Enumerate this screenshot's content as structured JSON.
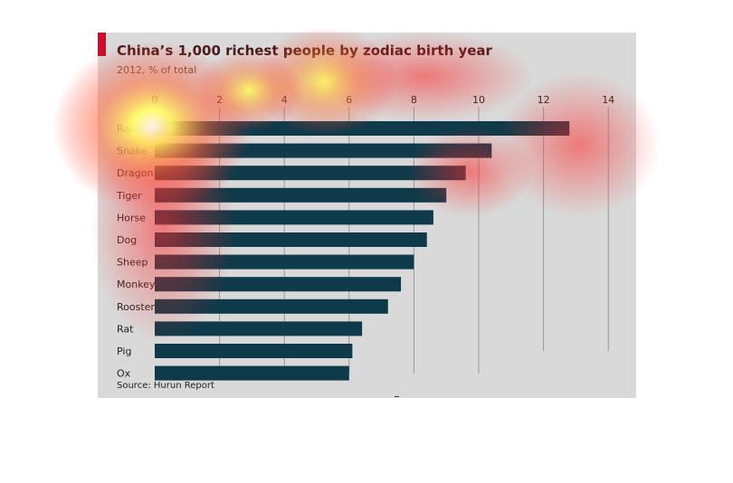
{
  "title": "China’s 1,000 richest people by zodiac birth year",
  "subtitle": "2012, % of total",
  "source": "Source: Hurun Report",
  "colors": {
    "bar": "#0f3a4a",
    "background": "#d9d9d9",
    "grid": "#9a9a9a",
    "accent": "#c8102e"
  },
  "chart_data": {
    "type": "bar",
    "orientation": "horizontal",
    "title": "China’s 1,000 richest people by zodiac birth year",
    "subtitle": "2012, % of total",
    "categories": [
      "Rabbit",
      "Snake",
      "Dragon",
      "Tiger",
      "Horse",
      "Dog",
      "Sheep",
      "Monkey",
      "Rooster",
      "Rat",
      "Pig",
      "Ox"
    ],
    "values": [
      12.8,
      10.4,
      9.6,
      9.0,
      8.6,
      8.4,
      8.0,
      7.6,
      7.2,
      6.4,
      6.1,
      6.0
    ],
    "xticks": [
      0,
      2,
      4,
      6,
      8,
      10,
      12,
      14
    ],
    "xlim": [
      0,
      14
    ],
    "grid": true,
    "axis_position": "top"
  }
}
